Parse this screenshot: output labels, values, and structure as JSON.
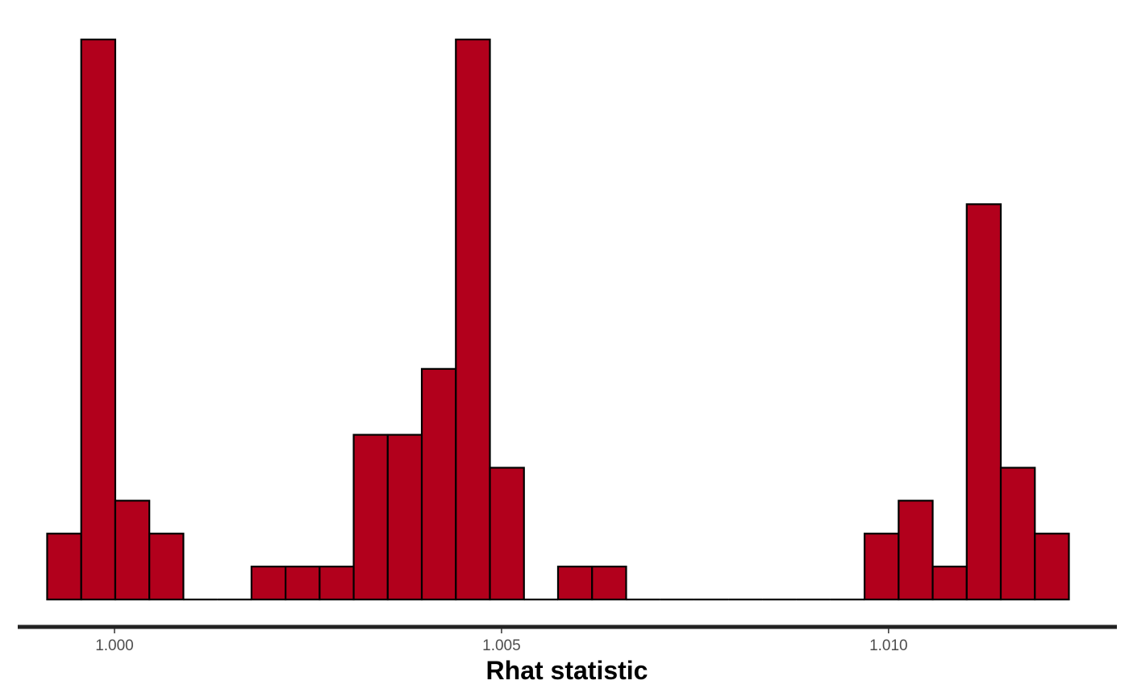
{
  "chart_data": {
    "type": "bar",
    "title": "",
    "xlabel": "Rhat statistic",
    "ylabel": "",
    "bin_width": 0.00044,
    "xlim": [
      0.99875,
      1.01295
    ],
    "ylim": [
      0,
      17
    ],
    "x_ticks": [
      1.0,
      1.005,
      1.01
    ],
    "x_tick_labels": [
      "1.000",
      "1.005",
      "1.010"
    ],
    "y_axis_shown": false,
    "grid": false,
    "bins": [
      {
        "x": 0.99935,
        "count": 2
      },
      {
        "x": 0.99979,
        "count": 17
      },
      {
        "x": 1.00023,
        "count": 3
      },
      {
        "x": 1.00067,
        "count": 2
      },
      {
        "x": 1.00111,
        "count": 0
      },
      {
        "x": 1.00155,
        "count": 0
      },
      {
        "x": 1.00199,
        "count": 1
      },
      {
        "x": 1.00243,
        "count": 1
      },
      {
        "x": 1.00287,
        "count": 1
      },
      {
        "x": 1.00331,
        "count": 5
      },
      {
        "x": 1.00375,
        "count": 5
      },
      {
        "x": 1.00419,
        "count": 7
      },
      {
        "x": 1.00463,
        "count": 17
      },
      {
        "x": 1.00507,
        "count": 4
      },
      {
        "x": 1.00551,
        "count": 0
      },
      {
        "x": 1.00595,
        "count": 1
      },
      {
        "x": 1.00639,
        "count": 1
      },
      {
        "x": 1.00683,
        "count": 0
      },
      {
        "x": 1.00727,
        "count": 0
      },
      {
        "x": 1.00771,
        "count": 0
      },
      {
        "x": 1.00815,
        "count": 0
      },
      {
        "x": 1.00859,
        "count": 0
      },
      {
        "x": 1.00903,
        "count": 0
      },
      {
        "x": 1.00947,
        "count": 0
      },
      {
        "x": 1.00991,
        "count": 2
      },
      {
        "x": 1.01035,
        "count": 3
      },
      {
        "x": 1.01079,
        "count": 1
      },
      {
        "x": 1.01123,
        "count": 12
      },
      {
        "x": 1.01167,
        "count": 4
      },
      {
        "x": 1.01211,
        "count": 2
      }
    ],
    "fill_color": "#b2001c",
    "outline_color": "#000000"
  }
}
